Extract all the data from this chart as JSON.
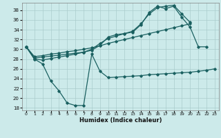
{
  "xlabel": "Humidex (Indice chaleur)",
  "background_color": "#cceaea",
  "grid_color": "#aacccc",
  "line_color": "#1a6060",
  "xlim": [
    -0.5,
    23.5
  ],
  "ylim": [
    17.5,
    39.5
  ],
  "xticks": [
    0,
    1,
    2,
    3,
    4,
    5,
    6,
    7,
    8,
    9,
    10,
    11,
    12,
    13,
    14,
    15,
    16,
    17,
    18,
    19,
    20,
    21,
    22,
    23
  ],
  "yticks": [
    18,
    20,
    22,
    24,
    26,
    28,
    30,
    32,
    34,
    36,
    38
  ],
  "line1_x": [
    0,
    1,
    2,
    3,
    4,
    5,
    6,
    7,
    8,
    9,
    10,
    11,
    12,
    13,
    14,
    15,
    16,
    17,
    18,
    19,
    20,
    21,
    22,
    23
  ],
  "line1_y": [
    30.5,
    28.0,
    27.0,
    23.5,
    21.5,
    19.0,
    18.5,
    18.5,
    29.0,
    25.5,
    24.2,
    24.3,
    24.4,
    24.5,
    24.6,
    24.8,
    24.9,
    25.0,
    25.1,
    25.2,
    25.3,
    25.5,
    25.7,
    26.0
  ],
  "line2_x": [
    0,
    1,
    2,
    3,
    4,
    5,
    6,
    7,
    8,
    9,
    10,
    11,
    12,
    13,
    14,
    15,
    16,
    17,
    18,
    19,
    20,
    21,
    22
  ],
  "line2_y": [
    30.5,
    28.2,
    28.4,
    28.6,
    28.8,
    29.0,
    29.2,
    29.4,
    29.8,
    30.8,
    32.5,
    33.0,
    33.2,
    33.5,
    35.0,
    37.5,
    38.8,
    38.3,
    38.8,
    36.5,
    34.5,
    30.5,
    30.5
  ],
  "line3_x": [
    0,
    1,
    2,
    3,
    4,
    5,
    6,
    7,
    8,
    9,
    10,
    11,
    12,
    13,
    14,
    15,
    16,
    17,
    18,
    19,
    20
  ],
  "line3_y": [
    30.5,
    28.0,
    27.8,
    28.1,
    28.4,
    28.7,
    29.0,
    29.4,
    30.0,
    31.2,
    32.2,
    32.7,
    33.2,
    33.7,
    35.2,
    37.2,
    38.5,
    38.8,
    39.0,
    37.2,
    35.5
  ],
  "line4_x": [
    0,
    1,
    2,
    3,
    4,
    5,
    6,
    7,
    8,
    9,
    10,
    11,
    12,
    13,
    14,
    15,
    16,
    17,
    18,
    19,
    20
  ],
  "line4_y": [
    30.5,
    28.5,
    28.7,
    29.0,
    29.2,
    29.5,
    29.7,
    30.0,
    30.3,
    30.7,
    31.2,
    31.6,
    32.0,
    32.4,
    32.8,
    33.2,
    33.6,
    34.0,
    34.4,
    34.8,
    35.2
  ]
}
